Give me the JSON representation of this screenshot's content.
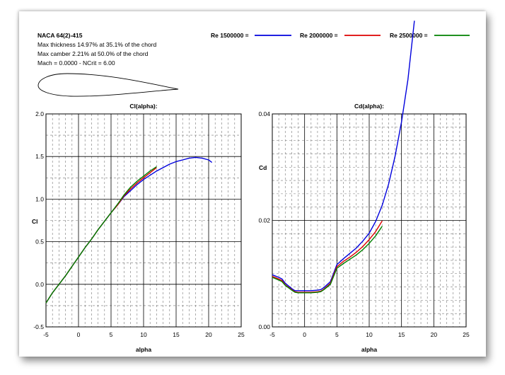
{
  "header": {
    "airfoil_name": "NACA 64(2)-415",
    "thickness_line": "Max thickness 14.97% at 35.1% of the chord",
    "camber_line": "Max camber 2.21% at 50.0% of the chord",
    "conditions_line": "Mach = 0.0000 - NCrit = 6.00"
  },
  "legend": [
    {
      "label": "Re 1500000 =",
      "color": "#0000dd"
    },
    {
      "label": "Re 2000000 =",
      "color": "#dd0000"
    },
    {
      "label": "Re 2500000 =",
      "color": "#008000"
    }
  ],
  "chart_data": [
    {
      "type": "line",
      "title": "Cl(alpha):",
      "xlabel": "alpha",
      "ylabel": "Cl",
      "xlim": [
        -5,
        25
      ],
      "ylim": [
        -0.5,
        2.0
      ],
      "xticks": [
        "-5",
        "0",
        "5",
        "10",
        "15",
        "20",
        "25"
      ],
      "yticks": [
        "-0.5",
        "0.0",
        "0.5",
        "1.0",
        "1.5",
        "2.0"
      ],
      "grid": true,
      "series": [
        {
          "name": "Re 1500000",
          "color": "#0000dd",
          "x": [
            -5,
            -4,
            -3,
            -2,
            -1,
            0,
            1,
            2,
            3,
            4,
            5,
            6,
            7,
            8,
            9,
            10,
            11,
            12,
            13,
            14,
            15,
            16,
            17,
            18,
            19,
            20,
            20.5
          ],
          "y": [
            -0.22,
            -0.1,
            0.0,
            0.1,
            0.21,
            0.32,
            0.43,
            0.53,
            0.64,
            0.74,
            0.84,
            0.93,
            1.03,
            1.1,
            1.17,
            1.23,
            1.28,
            1.33,
            1.37,
            1.41,
            1.44,
            1.46,
            1.48,
            1.49,
            1.48,
            1.46,
            1.43
          ]
        },
        {
          "name": "Re 2000000",
          "color": "#dd0000",
          "x": [
            -5,
            -4,
            -3,
            -2,
            -1,
            0,
            1,
            2,
            3,
            4,
            5,
            6,
            7,
            8,
            9,
            10,
            11,
            12
          ],
          "y": [
            -0.22,
            -0.1,
            0.0,
            0.1,
            0.21,
            0.32,
            0.43,
            0.53,
            0.64,
            0.74,
            0.84,
            0.93,
            1.04,
            1.12,
            1.19,
            1.25,
            1.31,
            1.37
          ]
        },
        {
          "name": "Re 2500000",
          "color": "#008000",
          "x": [
            -5,
            -4,
            -3,
            -2,
            -1,
            0,
            1,
            2,
            3,
            4,
            5,
            6,
            7,
            8,
            9,
            10,
            11,
            12
          ],
          "y": [
            -0.22,
            -0.1,
            0.0,
            0.1,
            0.21,
            0.32,
            0.43,
            0.53,
            0.64,
            0.74,
            0.84,
            0.94,
            1.05,
            1.14,
            1.21,
            1.27,
            1.33,
            1.38
          ]
        }
      ]
    },
    {
      "type": "line",
      "title": "Cd(alpha):",
      "xlabel": "alpha",
      "ylabel": "Cd",
      "xlim": [
        -5,
        25
      ],
      "ylim": [
        0.0,
        0.04
      ],
      "xticks": [
        "-5",
        "0",
        "5",
        "10",
        "15",
        "20",
        "25"
      ],
      "yticks": [
        "0.00",
        "0.02",
        "0.04"
      ],
      "grid": true,
      "series": [
        {
          "name": "Re 1500000",
          "color": "#0000dd",
          "x": [
            -5,
            -4,
            -3.5,
            -3,
            -2,
            -1.5,
            -1,
            0,
            1,
            2,
            2.5,
            3,
            4,
            5,
            6,
            7,
            8,
            9,
            10,
            11,
            12,
            13,
            14,
            15,
            16,
            17
          ],
          "y": [
            0.0098,
            0.0093,
            0.009,
            0.0082,
            0.0072,
            0.0068,
            0.0068,
            0.0068,
            0.0068,
            0.0069,
            0.007,
            0.0074,
            0.0085,
            0.0117,
            0.0128,
            0.0138,
            0.0148,
            0.0161,
            0.0176,
            0.0198,
            0.0228,
            0.0268,
            0.032,
            0.0385,
            0.0465,
            0.0575
          ]
        },
        {
          "name": "Re 2000000",
          "color": "#dd0000",
          "x": [
            -5,
            -4,
            -3.5,
            -3,
            -2,
            -1.5,
            -1,
            0,
            1,
            2,
            2.5,
            3,
            4,
            5,
            6,
            7,
            8,
            9,
            10,
            11,
            12
          ],
          "y": [
            0.0095,
            0.009,
            0.0087,
            0.0079,
            0.007,
            0.0066,
            0.0065,
            0.0065,
            0.0065,
            0.0066,
            0.0067,
            0.0071,
            0.0082,
            0.0113,
            0.0123,
            0.0131,
            0.014,
            0.0151,
            0.0164,
            0.0179,
            0.0199
          ]
        },
        {
          "name": "Re 2500000",
          "color": "#008000",
          "x": [
            -5,
            -4,
            -3.5,
            -3,
            -2,
            -1.5,
            -1,
            0,
            1,
            2,
            2.5,
            3,
            4,
            5,
            6,
            7,
            8,
            9,
            10,
            11,
            12
          ],
          "y": [
            0.0093,
            0.0088,
            0.0085,
            0.0078,
            0.0069,
            0.0065,
            0.0064,
            0.0064,
            0.0064,
            0.0065,
            0.0066,
            0.007,
            0.008,
            0.011,
            0.0119,
            0.0127,
            0.0135,
            0.0145,
            0.0157,
            0.0171,
            0.0189
          ]
        }
      ]
    }
  ]
}
